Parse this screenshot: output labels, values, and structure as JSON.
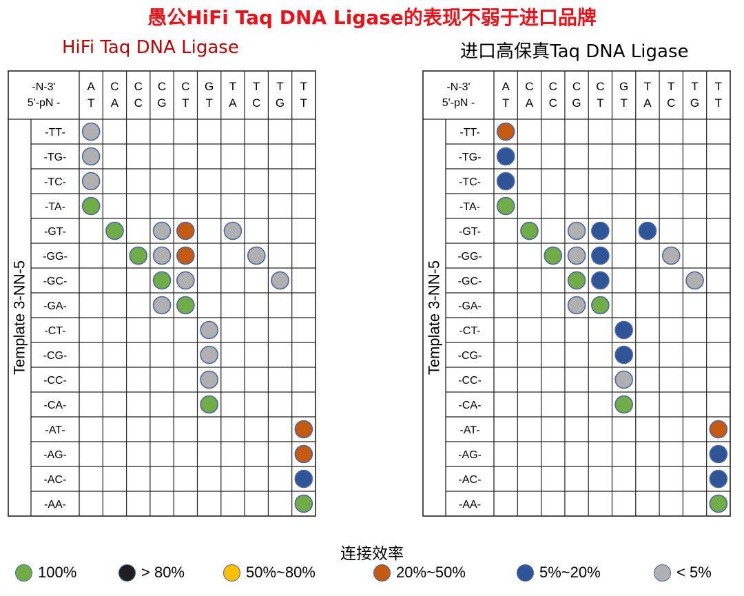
{
  "title": "愚公HiFi Taq DNA Ligase的表现不弱于进口品牌",
  "colors": {
    "100%": "#70ad47",
    ">80%": "#1f1f1f",
    "50%~80%": "#ffc000",
    "20%~50%": "#c55a11",
    "5%~20%": "#2f5597",
    "<5%": "#b0b0b0"
  },
  "chart_data": [
    {
      "type": "table",
      "title": "HiFi Taq DNA Ligase",
      "corner_line1": "-N-3'",
      "corner_line2": "5'-pN -",
      "row_axis_label": "Template 3-NN-5",
      "columns": [
        {
          "top": "A",
          "bottom": "T"
        },
        {
          "top": "C",
          "bottom": "A"
        },
        {
          "top": "C",
          "bottom": "C"
        },
        {
          "top": "C",
          "bottom": "G"
        },
        {
          "top": "C",
          "bottom": "T"
        },
        {
          "top": "G",
          "bottom": "T"
        },
        {
          "top": "T",
          "bottom": "A"
        },
        {
          "top": "T",
          "bottom": "C"
        },
        {
          "top": "T",
          "bottom": "G"
        },
        {
          "top": "T",
          "bottom": "T"
        }
      ],
      "rows": [
        "-TT-",
        "-TG-",
        "-TC-",
        "-TA-",
        "-GT-",
        "-GG-",
        "-GC-",
        "-GA-",
        "-CT-",
        "-CG-",
        "-CC-",
        "-CA-",
        "-AT-",
        "-AG-",
        "-AC-",
        "-AA-"
      ],
      "cells": [
        {
          "row": "-TT-",
          "col": 0,
          "efficiency": "<5%"
        },
        {
          "row": "-TG-",
          "col": 0,
          "efficiency": "<5%"
        },
        {
          "row": "-TC-",
          "col": 0,
          "efficiency": "<5%"
        },
        {
          "row": "-TA-",
          "col": 0,
          "efficiency": "100%"
        },
        {
          "row": "-GT-",
          "col": 1,
          "efficiency": "100%"
        },
        {
          "row": "-GT-",
          "col": 3,
          "efficiency": "<5%"
        },
        {
          "row": "-GT-",
          "col": 4,
          "efficiency": "20%~50%"
        },
        {
          "row": "-GT-",
          "col": 6,
          "efficiency": "<5%"
        },
        {
          "row": "-GG-",
          "col": 2,
          "efficiency": "100%"
        },
        {
          "row": "-GG-",
          "col": 3,
          "efficiency": "<5%"
        },
        {
          "row": "-GG-",
          "col": 4,
          "efficiency": "20%~50%"
        },
        {
          "row": "-GG-",
          "col": 7,
          "efficiency": "<5%"
        },
        {
          "row": "-GC-",
          "col": 3,
          "efficiency": "100%"
        },
        {
          "row": "-GC-",
          "col": 4,
          "efficiency": "<5%"
        },
        {
          "row": "-GC-",
          "col": 8,
          "efficiency": "<5%"
        },
        {
          "row": "-GA-",
          "col": 3,
          "efficiency": "<5%"
        },
        {
          "row": "-GA-",
          "col": 4,
          "efficiency": "100%"
        },
        {
          "row": "-CT-",
          "col": 5,
          "efficiency": "<5%"
        },
        {
          "row": "-CG-",
          "col": 5,
          "efficiency": "<5%"
        },
        {
          "row": "-CC-",
          "col": 5,
          "efficiency": "<5%"
        },
        {
          "row": "-CA-",
          "col": 5,
          "efficiency": "100%"
        },
        {
          "row": "-AT-",
          "col": 9,
          "efficiency": "20%~50%"
        },
        {
          "row": "-AG-",
          "col": 9,
          "efficiency": "20%~50%"
        },
        {
          "row": "-AC-",
          "col": 9,
          "efficiency": "5%~20%"
        },
        {
          "row": "-AA-",
          "col": 9,
          "efficiency": "100%"
        }
      ]
    },
    {
      "type": "table",
      "title": "进口高保真Taq DNA Ligase",
      "corner_line1": "-N-3'",
      "corner_line2": "5'-pN -",
      "row_axis_label": "Template 3-NN-5",
      "columns": [
        {
          "top": "A",
          "bottom": "T"
        },
        {
          "top": "C",
          "bottom": "A"
        },
        {
          "top": "C",
          "bottom": "C"
        },
        {
          "top": "C",
          "bottom": "G"
        },
        {
          "top": "C",
          "bottom": "T"
        },
        {
          "top": "G",
          "bottom": "T"
        },
        {
          "top": "T",
          "bottom": "A"
        },
        {
          "top": "T",
          "bottom": "C"
        },
        {
          "top": "T",
          "bottom": "G"
        },
        {
          "top": "T",
          "bottom": "T"
        }
      ],
      "rows": [
        "-TT-",
        "-TG-",
        "-TC-",
        "-TA-",
        "-GT-",
        "-GG-",
        "-GC-",
        "-GA-",
        "-CT-",
        "-CG-",
        "-CC-",
        "-CA-",
        "-AT-",
        "-AG-",
        "-AC-",
        "-AA-"
      ],
      "cells": [
        {
          "row": "-TT-",
          "col": 0,
          "efficiency": "20%~50%"
        },
        {
          "row": "-TG-",
          "col": 0,
          "efficiency": "5%~20%"
        },
        {
          "row": "-TC-",
          "col": 0,
          "efficiency": "5%~20%"
        },
        {
          "row": "-TA-",
          "col": 0,
          "efficiency": "100%"
        },
        {
          "row": "-GT-",
          "col": 1,
          "efficiency": "100%"
        },
        {
          "row": "-GT-",
          "col": 3,
          "efficiency": "<5%"
        },
        {
          "row": "-GT-",
          "col": 4,
          "efficiency": "5%~20%"
        },
        {
          "row": "-GT-",
          "col": 6,
          "efficiency": "5%~20%"
        },
        {
          "row": "-GG-",
          "col": 2,
          "efficiency": "100%"
        },
        {
          "row": "-GG-",
          "col": 3,
          "efficiency": "<5%"
        },
        {
          "row": "-GG-",
          "col": 4,
          "efficiency": "5%~20%"
        },
        {
          "row": "-GG-",
          "col": 7,
          "efficiency": "<5%"
        },
        {
          "row": "-GC-",
          "col": 3,
          "efficiency": "100%"
        },
        {
          "row": "-GC-",
          "col": 4,
          "efficiency": "5%~20%"
        },
        {
          "row": "-GC-",
          "col": 8,
          "efficiency": "<5%"
        },
        {
          "row": "-GA-",
          "col": 3,
          "efficiency": "<5%"
        },
        {
          "row": "-GA-",
          "col": 4,
          "efficiency": "100%"
        },
        {
          "row": "-CT-",
          "col": 5,
          "efficiency": "5%~20%"
        },
        {
          "row": "-CG-",
          "col": 5,
          "efficiency": "5%~20%"
        },
        {
          "row": "-CC-",
          "col": 5,
          "efficiency": "<5%"
        },
        {
          "row": "-CA-",
          "col": 5,
          "efficiency": "100%"
        },
        {
          "row": "-AT-",
          "col": 9,
          "efficiency": "20%~50%"
        },
        {
          "row": "-AG-",
          "col": 9,
          "efficiency": "5%~20%"
        },
        {
          "row": "-AC-",
          "col": 9,
          "efficiency": "5%~20%"
        },
        {
          "row": "-AA-",
          "col": 9,
          "efficiency": "100%"
        }
      ]
    }
  ],
  "legend": {
    "title": "连接效率",
    "items": [
      {
        "key": "100%",
        "label": "100%"
      },
      {
        "key": ">80%",
        "label": "> 80%"
      },
      {
        "key": "50%~80%",
        "label": "50%~80%"
      },
      {
        "key": "20%~50%",
        "label": "20%~50%"
      },
      {
        "key": "5%~20%",
        "label": "5%~20%"
      },
      {
        "key": "<5%",
        "label": "< 5%"
      }
    ]
  }
}
